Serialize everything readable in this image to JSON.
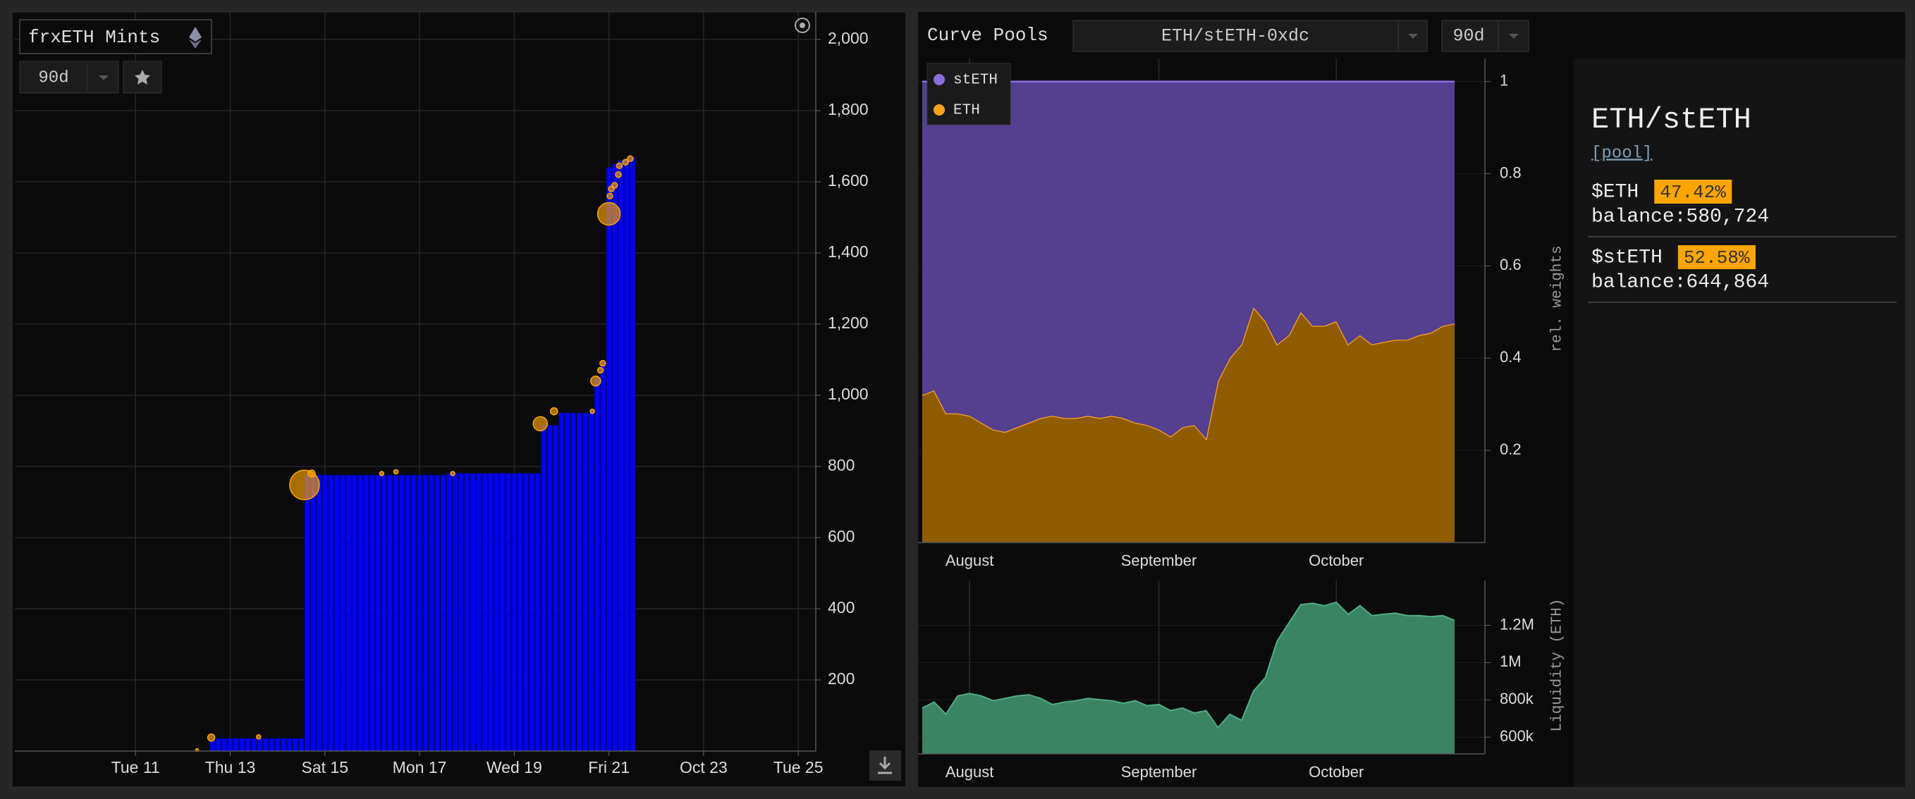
{
  "left_panel": {
    "title": "frxETH Mints",
    "range": "90d",
    "chart": {
      "type": "bar",
      "x": [
        12.625,
        12.75,
        12.875,
        13,
        13.125,
        13.25,
        13.375,
        13.5,
        13.625,
        13.75,
        13.875,
        14,
        14.125,
        14.25,
        14.375,
        14.5,
        14.625,
        14.75,
        14.875,
        15,
        15.125,
        15.25,
        15.375,
        15.5,
        15.625,
        15.75,
        15.875,
        16,
        16.125,
        16.25,
        16.375,
        16.5,
        16.625,
        16.75,
        16.875,
        17,
        17.125,
        17.25,
        17.375,
        17.5,
        17.625,
        17.75,
        17.875,
        18,
        18.125,
        18.25,
        18.375,
        18.5,
        18.625,
        18.75,
        18.875,
        19,
        19.125,
        19.25,
        19.375,
        19.5,
        19.625,
        19.75,
        19.875,
        20,
        20.125,
        20.25,
        20.375,
        20.5,
        20.625,
        20.75,
        20.875,
        21,
        21.125,
        21.25,
        21.375,
        21.5
      ],
      "values": [
        35,
        35,
        35,
        35,
        35,
        35,
        35,
        35,
        35,
        35,
        35,
        35,
        35,
        35,
        35,
        35,
        775,
        775,
        775,
        775,
        775,
        775,
        775,
        775,
        775,
        775,
        775,
        775,
        775,
        775,
        775,
        775,
        775,
        775,
        775,
        775,
        775,
        775,
        775,
        775,
        780,
        780,
        780,
        780,
        780,
        780,
        780,
        780,
        780,
        780,
        780,
        780,
        780,
        780,
        780,
        780,
        915,
        915,
        915,
        950,
        950,
        950,
        950,
        950,
        950,
        1050,
        1095,
        1640,
        1650,
        1660,
        1665,
        1670
      ],
      "color": "#0000ff",
      "bubbles": {
        "x": [
          12.3,
          12.6,
          13.6,
          14.57,
          14.72,
          16.2,
          16.5,
          17.7,
          19.55,
          19.84,
          20.65,
          20.72,
          20.82,
          20.87,
          21.0,
          21.02,
          21.05,
          21.12,
          21.2,
          21.22,
          21.35,
          21.45
        ],
        "y": [
          3,
          38,
          40,
          748,
          780,
          780,
          785,
          780,
          920,
          955,
          955,
          1040,
          1070,
          1090,
          1510,
          1560,
          1580,
          1590,
          1620,
          1645,
          1655,
          1665
        ],
        "sizes": [
          2,
          5,
          3,
          21,
          5,
          3,
          3,
          3,
          10,
          5,
          3,
          7,
          4,
          4,
          16,
          4,
          4,
          4,
          4,
          4,
          4,
          4
        ],
        "color": "#ffa500"
      },
      "xlim": [
        8.45,
        25.37
      ],
      "xticks": [
        {
          "value": 11,
          "label": "Tue 11"
        },
        {
          "value": 13,
          "label": "Thu 13"
        },
        {
          "value": 15,
          "label": "Sat 15"
        },
        {
          "value": 17,
          "label": "Mon 17"
        },
        {
          "value": 19,
          "label": "Wed 19"
        },
        {
          "value": 21,
          "label": "Fri 21"
        },
        {
          "value": 23,
          "label": "Oct 23"
        },
        {
          "value": 25,
          "label": "Tue 25"
        }
      ],
      "ylim": [
        0,
        2080
      ],
      "yticks": [
        200,
        400,
        600,
        800,
        {
          "value": 1000,
          "label": "1,000"
        },
        {
          "value": 1200,
          "label": "1,200"
        },
        {
          "value": 1400,
          "label": "1,400"
        },
        {
          "value": 1600,
          "label": "1,600"
        },
        {
          "value": 1800,
          "label": "1,800"
        },
        {
          "value": 2000,
          "label": "2,000"
        }
      ],
      "grid": true
    }
  },
  "right_panel": {
    "title": "Curve Pools",
    "pool_select": "ETH/stETH-0xdc",
    "range": "90d",
    "weights_chart": {
      "type": "area",
      "stacked": true,
      "categories": [
        null,
        null,
        null,
        null,
        "August",
        null,
        null,
        null,
        null,
        null,
        null,
        null,
        null,
        null,
        null,
        null,
        null,
        null,
        null,
        null,
        "September",
        null,
        null,
        null,
        null,
        null,
        null,
        null,
        null,
        null,
        null,
        null,
        null,
        null,
        null,
        "October",
        null,
        null,
        null,
        null,
        null,
        null,
        null,
        null,
        null,
        null
      ],
      "series": [
        {
          "name": "stETH",
          "color": "#8a6ee0",
          "fill": "#55408f",
          "values": [
            0.68,
            0.67,
            0.72,
            0.72,
            0.725,
            0.74,
            0.755,
            0.76,
            0.75,
            0.74,
            0.73,
            0.725,
            0.73,
            0.73,
            0.725,
            0.73,
            0.725,
            0.73,
            0.74,
            0.745,
            0.755,
            0.77,
            0.75,
            0.745,
            0.775,
            0.65,
            0.6,
            0.57,
            0.49,
            0.52,
            0.57,
            0.55,
            0.5,
            0.53,
            0.53,
            0.52,
            0.57,
            0.55,
            0.57,
            0.565,
            0.56,
            0.56,
            0.55,
            0.545,
            0.53,
            0.525
          ]
        },
        {
          "name": "ETH",
          "color": "#ffa21a",
          "fill": "#8f5c00",
          "values": [
            0.32,
            0.33,
            0.28,
            0.28,
            0.275,
            0.26,
            0.245,
            0.24,
            0.25,
            0.26,
            0.27,
            0.275,
            0.27,
            0.27,
            0.275,
            0.27,
            0.275,
            0.27,
            0.26,
            0.255,
            0.245,
            0.23,
            0.25,
            0.255,
            0.225,
            0.35,
            0.4,
            0.43,
            0.51,
            0.48,
            0.43,
            0.45,
            0.5,
            0.47,
            0.47,
            0.48,
            0.43,
            0.45,
            0.43,
            0.435,
            0.44,
            0.44,
            0.45,
            0.455,
            0.47,
            0.475
          ]
        }
      ],
      "ylim": [
        0,
        1.05
      ],
      "yticks": [
        0.2,
        0.4,
        0.6,
        0.8,
        1
      ],
      "y_label": "rel. weights",
      "legend": "top-left"
    },
    "liquidity_chart": {
      "type": "area",
      "categories": [
        null,
        null,
        null,
        null,
        "August",
        null,
        null,
        null,
        null,
        null,
        null,
        null,
        null,
        null,
        null,
        null,
        null,
        null,
        null,
        null,
        "September",
        null,
        null,
        null,
        null,
        null,
        null,
        null,
        null,
        null,
        null,
        null,
        null,
        null,
        null,
        "October",
        null,
        null,
        null,
        null,
        null,
        null,
        null,
        null,
        null,
        null
      ],
      "values": [
        756000,
        788000,
        723000,
        821000,
        834000,
        821000,
        795000,
        808000,
        821000,
        827000,
        808000,
        775000,
        788000,
        795000,
        808000,
        801000,
        795000,
        782000,
        795000,
        769000,
        775000,
        742000,
        756000,
        729000,
        742000,
        651000,
        723000,
        690000,
        847000,
        919000,
        1115000,
        1213000,
        1311000,
        1318000,
        1305000,
        1324000,
        1259000,
        1305000,
        1252000,
        1259000,
        1265000,
        1252000,
        1252000,
        1246000,
        1252000,
        1226000
      ],
      "color": "#4fae80",
      "fill": "#3a8463",
      "ylim": [
        510000,
        1440000
      ],
      "yticks": [
        {
          "value": 600000,
          "label": "600k"
        },
        {
          "value": 800000,
          "label": "800k"
        },
        {
          "value": 1000000,
          "label": "1M"
        },
        {
          "value": 1200000,
          "label": "1.2M"
        }
      ],
      "y_label": "Liquidity (ETH)"
    },
    "info": {
      "pool_name": "ETH/stETH",
      "link": "[pool]",
      "tokens": [
        {
          "symbol": "$ETH",
          "share": "47.42%",
          "balance": "balance:580,724"
        },
        {
          "symbol": "$stETH",
          "share": "52.58%",
          "balance": "balance:644,864"
        }
      ]
    }
  }
}
